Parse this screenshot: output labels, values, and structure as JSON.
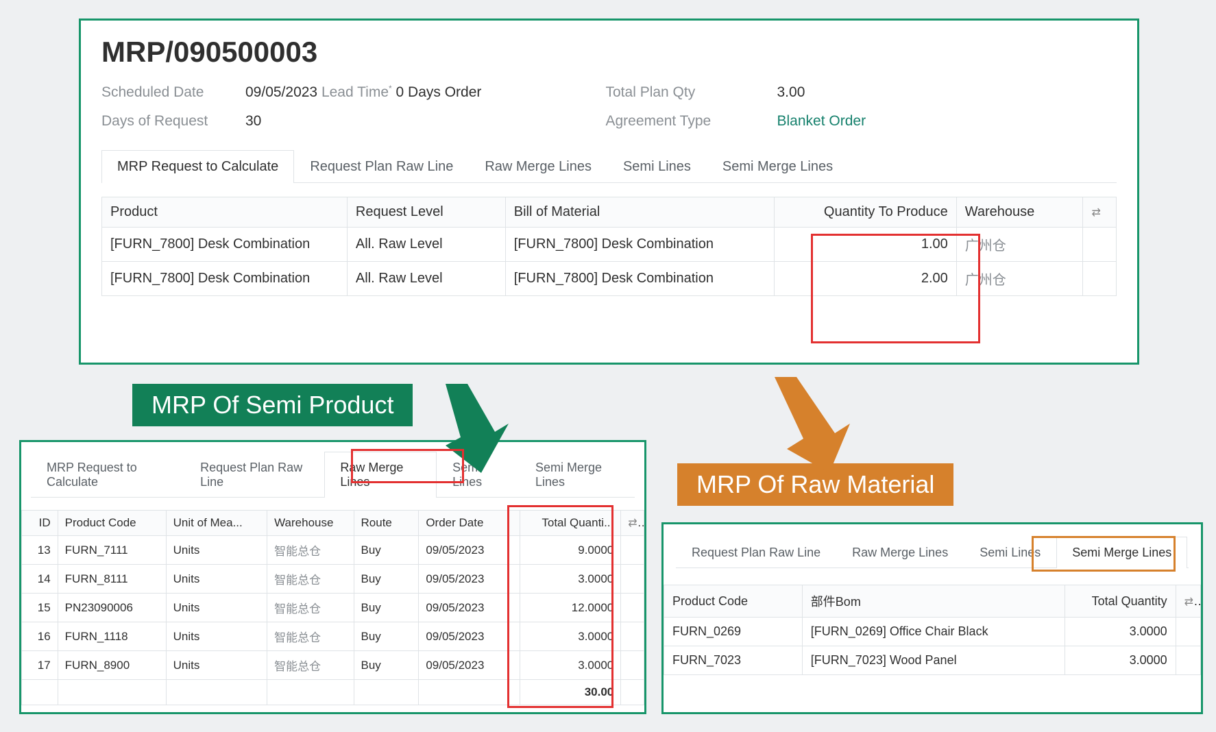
{
  "colors": {
    "green": "#17956a",
    "green_dark": "#128057",
    "orange": "#d6812c",
    "red": "#e33030",
    "teal_text": "#15806c",
    "grey_border": "#dfe3e6",
    "grey_header": "#fafbfc",
    "text": "#2f2f2f",
    "text_muted": "#8a8f94",
    "background": "#eef0f2"
  },
  "top": {
    "title": "MRP/090500003",
    "labels": {
      "scheduled_date": "Scheduled Date",
      "days_of_request": "Days of Request",
      "total_plan_qty": "Total Plan Qty",
      "agreement_type": "Agreement Type"
    },
    "values": {
      "scheduled_date": "09/05/2023",
      "lead_time": "Lead Time",
      "lead_suffix": "0 Days Order",
      "days_of_request": "30",
      "total_plan_qty": "3.00",
      "agreement_type": "Blanket Order"
    },
    "tabs": [
      "MRP Request to Calculate",
      "Request Plan Raw Line",
      "Raw Merge Lines",
      "Semi Lines",
      "Semi Merge Lines"
    ],
    "active_tab_index": 0,
    "table": {
      "columns": [
        "Product",
        "Request Level",
        "Bill of Material",
        "Quantity To Produce",
        "Warehouse"
      ],
      "col_widths": [
        "310px",
        "200px",
        "340px",
        "230px",
        "160px",
        "42px"
      ],
      "align": [
        "left",
        "left",
        "left",
        "right",
        "left",
        "center"
      ],
      "rows": [
        [
          "[FURN_7800] Desk Combination",
          "All. Raw Level",
          "[FURN_7800] Desk Combination",
          "1.00",
          "广州仓"
        ],
        [
          "[FURN_7800] Desk Combination",
          "All. Raw Level",
          "[FURN_7800] Desk Combination",
          "2.00",
          "广州仓"
        ]
      ],
      "highlight_col_index": 3
    }
  },
  "bl": {
    "tabs": [
      "MRP Request to Calculate",
      "Request Plan Raw Line",
      "Raw Merge Lines",
      "Semi Lines",
      "Semi Merge Lines"
    ],
    "active_tab_index": 2,
    "highlight_tab_index": 2,
    "table": {
      "columns": [
        "ID",
        "Product Code",
        "Unit of Mea...",
        "Warehouse",
        "Route",
        "Order Date",
        "Total Quanti..."
      ],
      "col_widths": [
        "50px",
        "150px",
        "140px",
        "120px",
        "90px",
        "140px",
        "140px",
        "32px"
      ],
      "align": [
        "right",
        "left",
        "left",
        "left",
        "left",
        "left",
        "right",
        "center"
      ],
      "rows": [
        [
          "13",
          "FURN_7111",
          "Units",
          "智能总仓",
          "Buy",
          "09/05/2023",
          "9.0000"
        ],
        [
          "14",
          "FURN_8111",
          "Units",
          "智能总仓",
          "Buy",
          "09/05/2023",
          "3.0000"
        ],
        [
          "15",
          "PN23090006",
          "Units",
          "智能总仓",
          "Buy",
          "09/05/2023",
          "12.0000"
        ],
        [
          "16",
          "FURN_1118",
          "Units",
          "智能总仓",
          "Buy",
          "09/05/2023",
          "3.0000"
        ],
        [
          "17",
          "FURN_8900",
          "Units",
          "智能总仓",
          "Buy",
          "09/05/2023",
          "3.0000"
        ]
      ],
      "footer_total": "30.00",
      "highlight_col_index": 6
    }
  },
  "br": {
    "tabs": [
      "Request Plan Raw Line",
      "Raw Merge Lines",
      "Semi Lines",
      "Semi Merge Lines"
    ],
    "active_tab_index": 3,
    "highlight_tab_index": 3,
    "highlight_color": "#d6812c",
    "table": {
      "columns": [
        "Product Code",
        "部件Bom",
        "Total Quantity"
      ],
      "col_widths": [
        "200px",
        "380px",
        "160px",
        "36px"
      ],
      "align": [
        "left",
        "left",
        "right",
        "center"
      ],
      "rows": [
        [
          "FURN_0269",
          "[FURN_0269] Office Chair Black",
          "3.0000"
        ],
        [
          "FURN_7023",
          "[FURN_7023] Wood Panel",
          "3.0000"
        ]
      ]
    }
  },
  "banners": {
    "semi": "MRP Of Semi Product",
    "raw": "MRP Of Raw Material"
  },
  "icons": {
    "settings": "⇄"
  }
}
